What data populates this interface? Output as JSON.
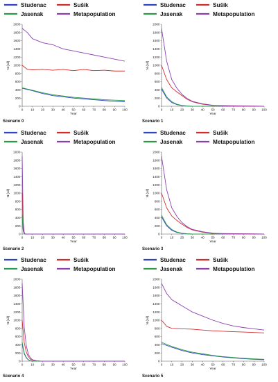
{
  "legend_colors": {
    "Studenac": "#2f44c4",
    "Sušik": "#d62b2b",
    "Jasenak": "#2a9a4a",
    "Metapopulation": "#8a3fb0"
  },
  "chart_data": [
    {
      "type": "line",
      "title": "Scenario 0",
      "xlabel": "Year",
      "ylabel": "N (all)",
      "xlim": [
        0,
        100
      ],
      "ylim": [
        0,
        2000
      ],
      "xticks": [
        0,
        10,
        20,
        30,
        40,
        50,
        60,
        70,
        80,
        90,
        100
      ],
      "yticks": [
        0,
        200,
        400,
        600,
        800,
        1000,
        1200,
        1400,
        1600,
        1800,
        2000
      ],
      "legend": "top",
      "grid": false,
      "series": [
        {
          "name": "Studenac",
          "color": "#2f44c4",
          "x": [
            0,
            10,
            20,
            30,
            40,
            50,
            60,
            70,
            80,
            90,
            100
          ],
          "y": [
            440,
            380,
            310,
            260,
            230,
            200,
            180,
            160,
            140,
            120,
            110
          ]
        },
        {
          "name": "Sušik",
          "color": "#d62b2b",
          "x": [
            0,
            5,
            10,
            20,
            30,
            40,
            50,
            60,
            70,
            80,
            90,
            100
          ],
          "y": [
            1000,
            900,
            890,
            900,
            880,
            900,
            870,
            900,
            870,
            880,
            860,
            860
          ]
        },
        {
          "name": "Jasenak",
          "color": "#2a9a4a",
          "x": [
            0,
            10,
            20,
            30,
            40,
            50,
            60,
            70,
            80,
            90,
            100
          ],
          "y": [
            450,
            390,
            330,
            280,
            250,
            220,
            200,
            180,
            160,
            150,
            140
          ]
        },
        {
          "name": "Metapopulation",
          "color": "#8a3fb0",
          "x": [
            0,
            5,
            10,
            20,
            30,
            40,
            50,
            60,
            70,
            80,
            90,
            100
          ],
          "y": [
            1900,
            1800,
            1650,
            1550,
            1500,
            1400,
            1350,
            1300,
            1250,
            1200,
            1150,
            1100
          ]
        }
      ]
    },
    {
      "type": "line",
      "title": "Scenario 1",
      "xlabel": "Year",
      "ylabel": "N (all)",
      "xlim": [
        0,
        100
      ],
      "ylim": [
        0,
        2000
      ],
      "xticks": [
        0,
        10,
        20,
        30,
        40,
        50,
        60,
        70,
        80,
        90,
        100
      ],
      "yticks": [
        0,
        200,
        400,
        600,
        800,
        1000,
        1200,
        1400,
        1600,
        1800,
        2000
      ],
      "legend": "top",
      "grid": false,
      "series": [
        {
          "name": "Studenac",
          "color": "#2f44c4",
          "x": [
            0,
            5,
            10,
            15,
            20,
            25,
            30,
            40,
            50,
            100
          ],
          "y": [
            420,
            200,
            90,
            40,
            15,
            5,
            0,
            0,
            0,
            0
          ]
        },
        {
          "name": "Sušik",
          "color": "#d62b2b",
          "x": [
            0,
            5,
            10,
            15,
            20,
            25,
            30,
            40,
            50,
            100
          ],
          "y": [
            1000,
            650,
            450,
            350,
            260,
            170,
            110,
            50,
            20,
            0
          ]
        },
        {
          "name": "Jasenak",
          "color": "#2a9a4a",
          "x": [
            0,
            5,
            10,
            15,
            20,
            25,
            30,
            40,
            50,
            100
          ],
          "y": [
            460,
            230,
            110,
            50,
            20,
            8,
            0,
            0,
            0,
            0
          ]
        },
        {
          "name": "Metapopulation",
          "color": "#8a3fb0",
          "x": [
            0,
            5,
            10,
            15,
            20,
            25,
            30,
            40,
            50,
            60,
            80,
            100
          ],
          "y": [
            1900,
            1100,
            650,
            440,
            290,
            190,
            120,
            60,
            25,
            10,
            5,
            0
          ]
        }
      ]
    },
    {
      "type": "line",
      "title": "Scenario 2",
      "xlabel": "Year",
      "ylabel": "N (all)",
      "xlim": [
        0,
        100
      ],
      "ylim": [
        0,
        2000
      ],
      "xticks": [
        0,
        10,
        20,
        30,
        40,
        50,
        60,
        70,
        80,
        90,
        100
      ],
      "yticks": [
        0,
        200,
        400,
        600,
        800,
        1000,
        1200,
        1400,
        1600,
        1800,
        2000
      ],
      "legend": "top",
      "grid": false,
      "series": [
        {
          "name": "Studenac",
          "color": "#2f44c4",
          "x": [
            0,
            1,
            2,
            3,
            5,
            100
          ],
          "y": [
            420,
            80,
            10,
            0,
            0,
            0
          ]
        },
        {
          "name": "Sušik",
          "color": "#d62b2b",
          "x": [
            0,
            1,
            2,
            3,
            5,
            100
          ],
          "y": [
            1000,
            150,
            20,
            0,
            0,
            0
          ]
        },
        {
          "name": "Jasenak",
          "color": "#2a9a4a",
          "x": [
            0,
            1,
            2,
            3,
            5,
            100
          ],
          "y": [
            460,
            80,
            10,
            0,
            0,
            0
          ]
        },
        {
          "name": "Metapopulation",
          "color": "#8a3fb0",
          "x": [
            0,
            1,
            2,
            3,
            5,
            100
          ],
          "y": [
            1900,
            300,
            40,
            0,
            0,
            0
          ]
        }
      ]
    },
    {
      "type": "line",
      "title": "Scenario 3",
      "xlabel": "Year",
      "ylabel": "N (all)",
      "xlim": [
        0,
        100
      ],
      "ylim": [
        0,
        2000
      ],
      "xticks": [
        0,
        10,
        20,
        30,
        40,
        50,
        60,
        70,
        80,
        90,
        100
      ],
      "yticks": [
        0,
        200,
        400,
        600,
        800,
        1000,
        1200,
        1400,
        1600,
        1800,
        2000
      ],
      "legend": "top",
      "grid": false,
      "series": [
        {
          "name": "Studenac",
          "color": "#2f44c4",
          "x": [
            0,
            5,
            10,
            15,
            20,
            25,
            30,
            40,
            100
          ],
          "y": [
            420,
            200,
            90,
            40,
            15,
            5,
            0,
            0,
            0
          ]
        },
        {
          "name": "Sušik",
          "color": "#d62b2b",
          "x": [
            0,
            5,
            10,
            15,
            20,
            25,
            30,
            40,
            50,
            100
          ],
          "y": [
            1000,
            640,
            440,
            330,
            240,
            160,
            100,
            45,
            15,
            0
          ]
        },
        {
          "name": "Jasenak",
          "color": "#2a9a4a",
          "x": [
            0,
            5,
            10,
            15,
            20,
            25,
            30,
            40,
            100
          ],
          "y": [
            460,
            230,
            110,
            50,
            20,
            8,
            0,
            0,
            0
          ]
        },
        {
          "name": "Metapopulation",
          "color": "#8a3fb0",
          "x": [
            0,
            5,
            10,
            15,
            20,
            25,
            30,
            40,
            50,
            60,
            80,
            100
          ],
          "y": [
            1900,
            1080,
            640,
            430,
            280,
            180,
            115,
            55,
            22,
            10,
            4,
            0
          ]
        }
      ]
    },
    {
      "type": "line",
      "title": "Scenario 4",
      "xlabel": "Year",
      "ylabel": "N (all)",
      "xlim": [
        0,
        100
      ],
      "ylim": [
        0,
        2000
      ],
      "xticks": [
        0,
        10,
        20,
        30,
        40,
        50,
        60,
        70,
        80,
        90,
        100
      ],
      "yticks": [
        0,
        200,
        400,
        600,
        800,
        1000,
        1200,
        1400,
        1600,
        1800,
        2000
      ],
      "legend": "top",
      "grid": false,
      "series": [
        {
          "name": "Studenac",
          "color": "#2f44c4",
          "x": [
            0,
            2,
            4,
            6,
            8,
            10,
            14,
            100
          ],
          "y": [
            420,
            180,
            80,
            30,
            10,
            0,
            0,
            0
          ]
        },
        {
          "name": "Sušik",
          "color": "#d62b2b",
          "x": [
            0,
            2,
            4,
            6,
            8,
            10,
            14,
            18,
            100
          ],
          "y": [
            1000,
            450,
            220,
            110,
            50,
            25,
            8,
            0,
            0
          ]
        },
        {
          "name": "Jasenak",
          "color": "#2a9a4a",
          "x": [
            0,
            2,
            4,
            6,
            8,
            10,
            14,
            100
          ],
          "y": [
            460,
            200,
            90,
            35,
            12,
            0,
            0,
            0
          ]
        },
        {
          "name": "Metapopulation",
          "color": "#8a3fb0",
          "x": [
            0,
            2,
            4,
            6,
            8,
            10,
            14,
            18,
            100
          ],
          "y": [
            1900,
            820,
            380,
            170,
            80,
            35,
            10,
            0,
            0
          ]
        }
      ]
    },
    {
      "type": "line",
      "title": "Scenario 5",
      "xlabel": "Year",
      "ylabel": "N (all)",
      "xlim": [
        0,
        100
      ],
      "ylim": [
        0,
        2000
      ],
      "xticks": [
        0,
        10,
        20,
        30,
        40,
        50,
        60,
        70,
        80,
        90,
        100
      ],
      "yticks": [
        0,
        200,
        400,
        600,
        800,
        1000,
        1200,
        1400,
        1600,
        1800,
        2000
      ],
      "legend": "top",
      "grid": false,
      "series": [
        {
          "name": "Studenac",
          "color": "#2f44c4",
          "x": [
            0,
            10,
            20,
            30,
            40,
            50,
            60,
            70,
            80,
            90,
            100
          ],
          "y": [
            430,
            340,
            260,
            200,
            160,
            130,
            100,
            80,
            60,
            45,
            35
          ]
        },
        {
          "name": "Sušik",
          "color": "#d62b2b",
          "x": [
            0,
            5,
            10,
            20,
            30,
            40,
            50,
            60,
            70,
            80,
            90,
            100
          ],
          "y": [
            1000,
            850,
            800,
            790,
            780,
            760,
            740,
            730,
            720,
            710,
            700,
            690
          ]
        },
        {
          "name": "Jasenak",
          "color": "#2a9a4a",
          "x": [
            0,
            10,
            20,
            30,
            40,
            50,
            60,
            70,
            80,
            90,
            100
          ],
          "y": [
            460,
            360,
            280,
            220,
            180,
            140,
            110,
            90,
            70,
            55,
            45
          ]
        },
        {
          "name": "Metapopulation",
          "color": "#8a3fb0",
          "x": [
            0,
            5,
            10,
            20,
            30,
            40,
            50,
            60,
            70,
            80,
            90,
            100
          ],
          "y": [
            1900,
            1650,
            1500,
            1350,
            1200,
            1100,
            1000,
            920,
            860,
            820,
            790,
            760
          ]
        }
      ]
    }
  ]
}
